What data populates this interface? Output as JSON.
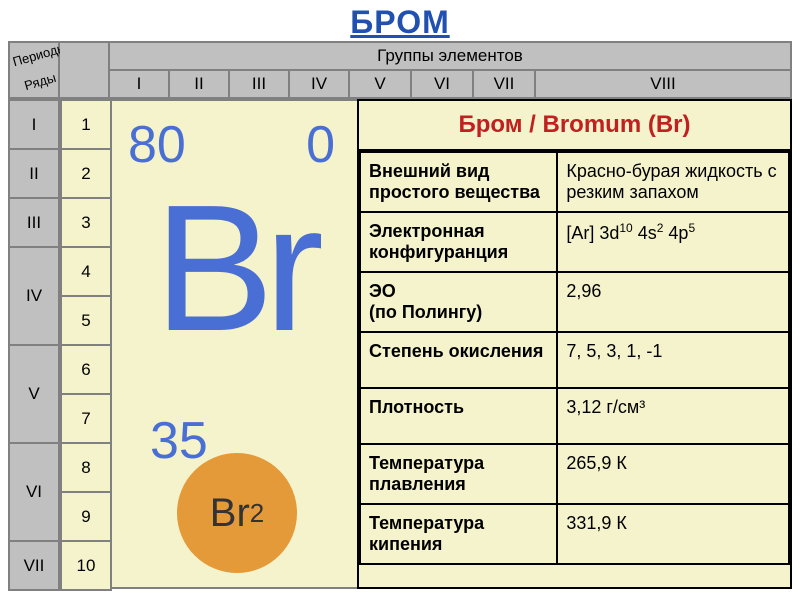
{
  "title": {
    "text": "БРОМ",
    "color": "#2050b0"
  },
  "header": {
    "periods": "Периоды",
    "rows": "Ряды",
    "groups_title": "Группы элементов",
    "groups": [
      "I",
      "II",
      "III",
      "IV",
      "V",
      "VI",
      "VII",
      "VIII"
    ]
  },
  "periods": [
    "I",
    "II",
    "III",
    "IV",
    "V",
    "VI",
    "VII"
  ],
  "period_rowspan": [
    1,
    1,
    1,
    2,
    2,
    2,
    1
  ],
  "row_numbers": [
    "1",
    "2",
    "3",
    "4",
    "5",
    "6",
    "7",
    "8",
    "9",
    "10"
  ],
  "element": {
    "mass": "80",
    "charge": "0",
    "symbol": "Br",
    "atomic_number": "35",
    "molecule_label": "Br",
    "molecule_sub": "2",
    "text_color": "#4a6fd4",
    "molecule_bg": "#e59a3a",
    "molecule_text": "#333333"
  },
  "info": {
    "title": "Бром / Bromum (Br)",
    "title_color": "#c02020",
    "rows": [
      {
        "label": "Внешний вид простого вещества",
        "value": "Красно-бурая жидкость с резким запахом"
      },
      {
        "label": "Электронная конфигуранция",
        "value_html": "[Ar] 3d<span class='sup'>10</span> 4s<span class='sup'>2</span> 4p<span class='sup'>5</span>"
      },
      {
        "label": " ЭО\n(по Полингу)",
        "value": "2,96"
      },
      {
        "label": "Степень окисления",
        "value": "7, 5, 3, 1, -1"
      },
      {
        "label": "Плотность",
        "value": "3,12 г/см³"
      },
      {
        "label": "Температура плавления",
        "value": "265,9 К"
      },
      {
        "label": "Температура кипения",
        "value": "331,9 К"
      }
    ]
  },
  "colors": {
    "card_bg": "#f5f3cc",
    "grey": "#c0c0c0",
    "border": "#808080",
    "black": "#000000"
  }
}
